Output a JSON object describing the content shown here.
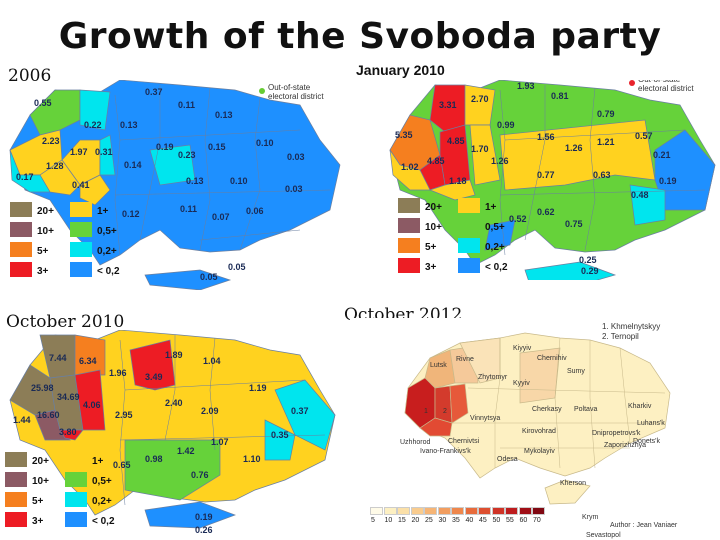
{
  "title": "Growth of the Svoboda party",
  "panels": [
    {
      "label": "2006"
    },
    {
      "label": "January 2010"
    },
    {
      "label": "October 2010"
    },
    {
      "label": "October 2012"
    }
  ],
  "out_of_state": "Out-of-state electoral district",
  "legend_main": [
    "20+",
    "1+",
    "10+",
    "0,5+",
    "5+",
    "0,2+",
    "3+",
    "< 0,2"
  ],
  "colors": {
    "c20": "#8c7d57",
    "c10": "#8c5a64",
    "c5": "#f57f1f",
    "c3": "#ed1c24",
    "c1": "#ffd21f",
    "c05": "#66d23a",
    "c02": "#00e5ee",
    "c0": "#1e90ff",
    "outdot": "#66cc33",
    "outdot2": "#e8232c"
  },
  "map2006": [
    "0.37",
    "0.55",
    "0.22",
    "0.13",
    "0.11",
    "0.13",
    "2.23",
    "1.97",
    "0.31",
    "0.19",
    "0.23",
    "0.15",
    "0.10",
    "0.14",
    "1.28",
    "0.13",
    "0.10",
    "0.03",
    "0.17",
    "0.41",
    "0.12",
    "0.11",
    "0.07",
    "0.06",
    "0.03",
    "0.05",
    "0.05"
  ],
  "mapJan2010": [
    "1.93",
    "3.31",
    "2.70",
    "0.81",
    "0.99",
    "0.79",
    "5.35",
    "4.85",
    "1.56",
    "1.70",
    "1.26",
    "1.21",
    "0.57",
    "1.02",
    "4.85",
    "1.26",
    "0.21",
    "1.18",
    "0.77",
    "0.63",
    "0.19",
    "0.48",
    "0.52",
    "0.62",
    "0.75",
    "0.25",
    "0.29"
  ],
  "mapOct2010": [
    "7.44",
    "6.34",
    "1.89",
    "1.04",
    "25.98",
    "34.69",
    "1.96",
    "3.49",
    "1.19",
    "16.60",
    "4.06",
    "2.95",
    "2.40",
    "2.09",
    "1.44",
    "3.80",
    "1.42",
    "1.07",
    "0.37",
    "0.35",
    "0.98",
    "1.10",
    "0.65",
    "0.76",
    "0.19",
    "0.26"
  ],
  "map2012": {
    "legend_note": [
      "1. Khmelnytskyy",
      "2. Ternopil"
    ],
    "cities": [
      "Kiyyiv",
      "Chernihiv",
      "Lutsk",
      "Rivne",
      "Zhytomyr",
      "Kyyiv",
      "Sumy",
      "Poltava",
      "Kharkiv",
      "Luhans'k",
      "Cherkasy",
      "Kirovohrad",
      "Dnipropetrovs'k",
      "Donets'k",
      "Zaporizhzhya",
      "Mykolayiv",
      "Odesa",
      "Kherson",
      "Krym",
      "Vinnytsya",
      "Uzhhorod",
      "Chernivtsi",
      "Ivano-Frankivs'k",
      "Sevastopol",
      "1",
      "2"
    ],
    "scale": [
      "5",
      "10",
      "15",
      "20",
      "25",
      "30",
      "35",
      "40",
      "45",
      "50",
      "55",
      "60",
      "70"
    ],
    "author": "Author : Jean Vaniaer"
  }
}
